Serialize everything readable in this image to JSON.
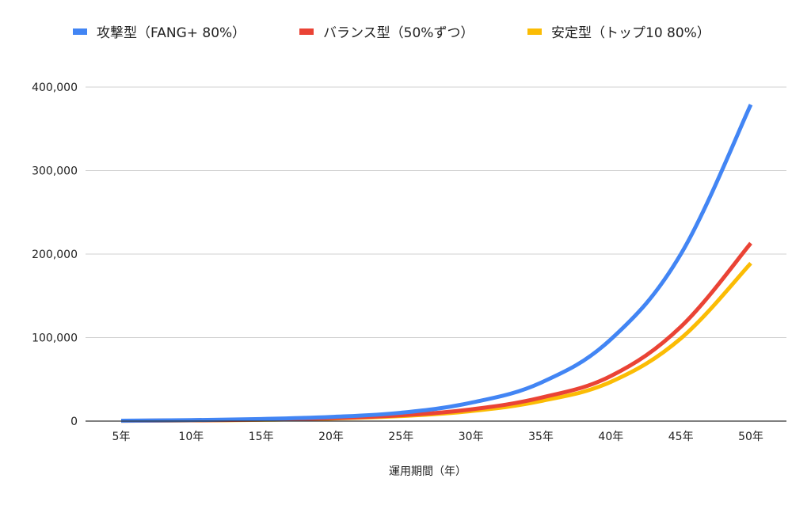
{
  "chart_data": {
    "type": "line",
    "title": "",
    "xlabel": "運用期間（年）",
    "ylabel": "",
    "categories": [
      "5年",
      "10年",
      "15年",
      "20年",
      "25年",
      "30年",
      "35年",
      "40年",
      "45年",
      "50年"
    ],
    "yticks": [
      "0",
      "100,000",
      "200,000",
      "300,000",
      "400,000"
    ],
    "ylim": [
      0,
      400000
    ],
    "grid": true,
    "legend_position": "top",
    "series": [
      {
        "name": "攻撃型（FANG+ 80%）",
        "color": "#4285F4",
        "values": [
          500,
          1200,
          2500,
          5000,
          10000,
          22000,
          46000,
          98000,
          200000,
          379000
        ]
      },
      {
        "name": "バランス型（50%ずつ）",
        "color": "#EA4335",
        "values": [
          400,
          900,
          1800,
          3500,
          7000,
          14000,
          28000,
          54000,
          113000,
          213000
        ]
      },
      {
        "name": "安定型（トップ10 80%）",
        "color": "#FBBC04",
        "values": [
          350,
          800,
          1500,
          3000,
          6000,
          12000,
          24000,
          47000,
          99000,
          189000
        ]
      }
    ]
  }
}
